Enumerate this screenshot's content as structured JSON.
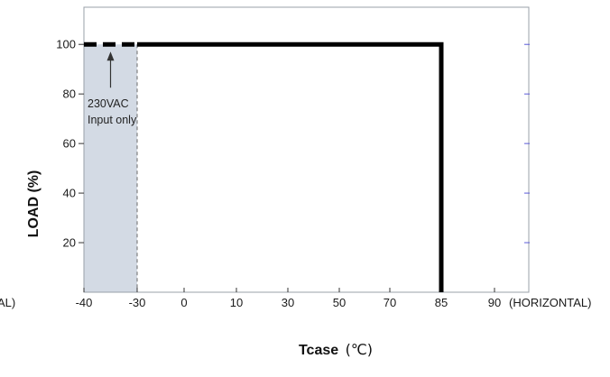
{
  "chart_data": {
    "type": "line",
    "ylabel": "LOAD (%)",
    "xlabel_main": "Tcase",
    "xlabel_unit": "(℃)",
    "x_ticks": [
      "-40",
      "-30",
      "0",
      "10",
      "30",
      "50",
      "70",
      "85",
      "90"
    ],
    "x_axis_note": "(HORIZONTAL)",
    "left_clipped_label": "AL)",
    "y_ticks": [
      20,
      40,
      60,
      80,
      100
    ],
    "ylim": [
      0,
      115
    ],
    "series": [
      {
        "style": "dashed",
        "points": [
          {
            "x": "-40",
            "y": 100
          },
          {
            "x": "-30",
            "y": 100
          }
        ]
      },
      {
        "style": "solid",
        "points": [
          {
            "x": "-30",
            "y": 100
          },
          {
            "x": "85",
            "y": 100
          },
          {
            "x": "85",
            "y": 0
          }
        ]
      }
    ],
    "shaded_region": {
      "x_from": "-40",
      "x_to": "-30"
    },
    "annotation": {
      "lines": [
        "230VAC",
        "Input only"
      ],
      "points_to": {
        "x": "-35",
        "y": 100
      }
    },
    "grid": false,
    "colors": {
      "line": "#000000",
      "shade": "#d3dae4",
      "frame": "#9aa0a8",
      "tick_right": "#5a5ad8"
    }
  }
}
